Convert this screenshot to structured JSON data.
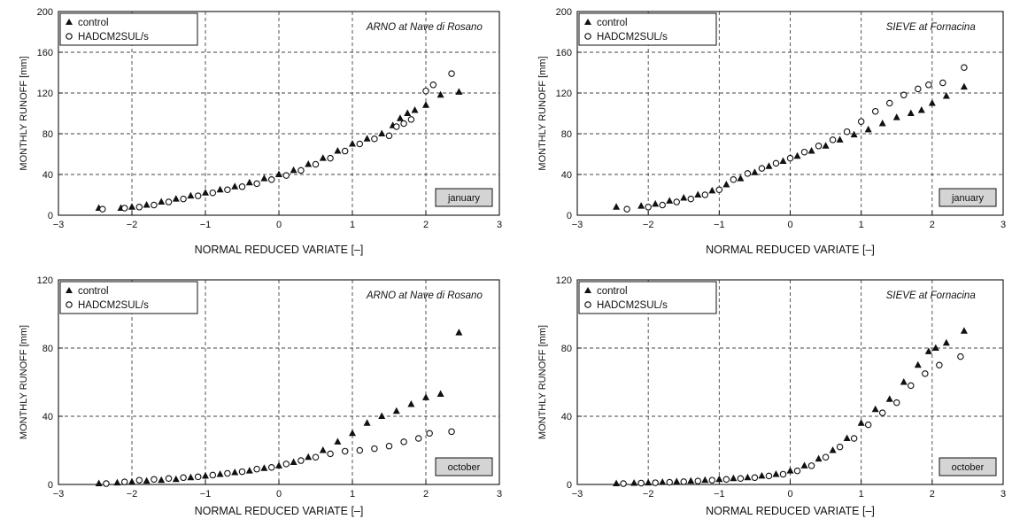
{
  "chart_data": [
    {
      "type": "scatter",
      "title": "ARNO at Nave di Rosano",
      "month": "january",
      "xlabel": "NORMAL REDUCED VARIATE [–]",
      "ylabel": "MONTHLY RUNOFF [mm]",
      "xlim": [
        -3,
        3
      ],
      "ylim": [
        0,
        200
      ],
      "xticks": [
        -3,
        -2,
        -1,
        0,
        1,
        2,
        3
      ],
      "yticks": [
        0,
        40,
        80,
        120,
        160,
        200
      ],
      "grid": true,
      "legend_position": "top-left",
      "series": [
        {
          "name": "control",
          "marker": "filled-triangle",
          "points": [
            [
              -2.45,
              7
            ],
            [
              -2.15,
              7
            ],
            [
              -2.0,
              8
            ],
            [
              -1.8,
              10
            ],
            [
              -1.6,
              13
            ],
            [
              -1.4,
              16
            ],
            [
              -1.2,
              19
            ],
            [
              -1.0,
              22
            ],
            [
              -0.8,
              25
            ],
            [
              -0.6,
              28
            ],
            [
              -0.4,
              32
            ],
            [
              -0.2,
              36
            ],
            [
              0.0,
              40
            ],
            [
              0.2,
              44
            ],
            [
              0.4,
              50
            ],
            [
              0.6,
              56
            ],
            [
              0.8,
              63
            ],
            [
              1.0,
              70
            ],
            [
              1.2,
              75
            ],
            [
              1.4,
              80
            ],
            [
              1.55,
              88
            ],
            [
              1.65,
              95
            ],
            [
              1.75,
              100
            ],
            [
              1.85,
              103
            ],
            [
              2.0,
              108
            ],
            [
              2.2,
              118
            ],
            [
              2.45,
              121
            ]
          ]
        },
        {
          "name": "HADCM2SUL/s",
          "marker": "open-circle",
          "points": [
            [
              -2.4,
              6
            ],
            [
              -2.1,
              7
            ],
            [
              -1.9,
              8
            ],
            [
              -1.7,
              10
            ],
            [
              -1.5,
              13
            ],
            [
              -1.3,
              16
            ],
            [
              -1.1,
              19
            ],
            [
              -0.9,
              22
            ],
            [
              -0.7,
              25
            ],
            [
              -0.5,
              28
            ],
            [
              -0.3,
              31
            ],
            [
              -0.1,
              35
            ],
            [
              0.1,
              39
            ],
            [
              0.3,
              44
            ],
            [
              0.5,
              50
            ],
            [
              0.7,
              56
            ],
            [
              0.9,
              63
            ],
            [
              1.1,
              70
            ],
            [
              1.3,
              75
            ],
            [
              1.5,
              78
            ],
            [
              1.6,
              87
            ],
            [
              1.7,
              90
            ],
            [
              1.8,
              94
            ],
            [
              2.0,
              122
            ],
            [
              2.1,
              128
            ],
            [
              2.35,
              139
            ]
          ]
        }
      ]
    },
    {
      "type": "scatter",
      "title": "SIEVE at Fornacina",
      "month": "january",
      "xlabel": "NORMAL REDUCED VARIATE [–]",
      "ylabel": "MONTHLY RUNOFF [mm]",
      "xlim": [
        -3,
        3
      ],
      "ylim": [
        0,
        200
      ],
      "xticks": [
        -3,
        -2,
        -1,
        0,
        1,
        2,
        3
      ],
      "yticks": [
        0,
        40,
        80,
        120,
        160,
        200
      ],
      "grid": true,
      "legend_position": "top-left",
      "series": [
        {
          "name": "control",
          "marker": "filled-triangle",
          "points": [
            [
              -2.45,
              8
            ],
            [
              -2.1,
              9
            ],
            [
              -1.9,
              11
            ],
            [
              -1.7,
              14
            ],
            [
              -1.5,
              17
            ],
            [
              -1.3,
              20
            ],
            [
              -1.1,
              24
            ],
            [
              -0.9,
              30
            ],
            [
              -0.7,
              36
            ],
            [
              -0.5,
              42
            ],
            [
              -0.3,
              48
            ],
            [
              -0.1,
              53
            ],
            [
              0.1,
              58
            ],
            [
              0.3,
              63
            ],
            [
              0.5,
              68
            ],
            [
              0.7,
              74
            ],
            [
              0.9,
              79
            ],
            [
              1.1,
              84
            ],
            [
              1.3,
              90
            ],
            [
              1.5,
              96
            ],
            [
              1.7,
              100
            ],
            [
              1.85,
              103
            ],
            [
              2.0,
              110
            ],
            [
              2.2,
              117
            ],
            [
              2.45,
              126
            ]
          ]
        },
        {
          "name": "HADCM2SUL/s",
          "marker": "open-circle",
          "points": [
            [
              -2.3,
              6
            ],
            [
              -2.0,
              8
            ],
            [
              -1.8,
              10
            ],
            [
              -1.6,
              13
            ],
            [
              -1.4,
              16
            ],
            [
              -1.2,
              20
            ],
            [
              -1.0,
              25
            ],
            [
              -0.8,
              35
            ],
            [
              -0.6,
              41
            ],
            [
              -0.4,
              46
            ],
            [
              -0.2,
              51
            ],
            [
              0.0,
              56
            ],
            [
              0.2,
              62
            ],
            [
              0.4,
              68
            ],
            [
              0.6,
              74
            ],
            [
              0.8,
              82
            ],
            [
              1.0,
              92
            ],
            [
              1.2,
              102
            ],
            [
              1.4,
              110
            ],
            [
              1.6,
              118
            ],
            [
              1.8,
              124
            ],
            [
              1.95,
              128
            ],
            [
              2.15,
              130
            ],
            [
              2.45,
              145
            ]
          ]
        }
      ]
    },
    {
      "type": "scatter",
      "title": "ARNO at Nave di Rosano",
      "month": "october",
      "xlabel": "NORMAL REDUCED VARIATE [–]",
      "ylabel": "MONTHLY RUNOFF [mm]",
      "xlim": [
        -3,
        3
      ],
      "ylim": [
        0,
        120
      ],
      "xticks": [
        -3,
        -2,
        -1,
        0,
        1,
        2,
        3
      ],
      "yticks": [
        0,
        40,
        80,
        120
      ],
      "grid": true,
      "legend_position": "top-left",
      "series": [
        {
          "name": "control",
          "marker": "filled-triangle",
          "points": [
            [
              -2.45,
              0.5
            ],
            [
              -2.2,
              1
            ],
            [
              -2.0,
              1.5
            ],
            [
              -1.8,
              2
            ],
            [
              -1.6,
              2.5
            ],
            [
              -1.4,
              3
            ],
            [
              -1.2,
              4
            ],
            [
              -1.0,
              5
            ],
            [
              -0.8,
              6
            ],
            [
              -0.6,
              7
            ],
            [
              -0.4,
              8
            ],
            [
              -0.2,
              9.5
            ],
            [
              0.0,
              11
            ],
            [
              0.2,
              13
            ],
            [
              0.4,
              16
            ],
            [
              0.6,
              20
            ],
            [
              0.8,
              25
            ],
            [
              1.0,
              30
            ],
            [
              1.2,
              36
            ],
            [
              1.4,
              40
            ],
            [
              1.6,
              43
            ],
            [
              1.8,
              47
            ],
            [
              2.0,
              51
            ],
            [
              2.2,
              53
            ],
            [
              2.45,
              89
            ]
          ]
        },
        {
          "name": "HADCM2SUL/s",
          "marker": "open-circle",
          "points": [
            [
              -2.35,
              0.5
            ],
            [
              -2.1,
              1.5
            ],
            [
              -1.9,
              2.5
            ],
            [
              -1.7,
              3
            ],
            [
              -1.5,
              3.5
            ],
            [
              -1.3,
              4
            ],
            [
              -1.1,
              4.5
            ],
            [
              -0.9,
              5.5
            ],
            [
              -0.7,
              6.5
            ],
            [
              -0.5,
              7.5
            ],
            [
              -0.3,
              9
            ],
            [
              -0.1,
              10
            ],
            [
              0.1,
              12
            ],
            [
              0.3,
              14
            ],
            [
              0.5,
              16
            ],
            [
              0.7,
              18
            ],
            [
              0.9,
              19.5
            ],
            [
              1.1,
              20
            ],
            [
              1.3,
              21
            ],
            [
              1.5,
              22.5
            ],
            [
              1.7,
              25
            ],
            [
              1.9,
              27
            ],
            [
              2.05,
              30
            ],
            [
              2.35,
              31
            ]
          ]
        }
      ]
    },
    {
      "type": "scatter",
      "title": "SIEVE at Fornacina",
      "month": "october",
      "xlabel": "NORMAL REDUCED VARIATE [–]",
      "ylabel": "MONTHLY RUNOFF [mm]",
      "xlim": [
        -3,
        3
      ],
      "ylim": [
        0,
        120
      ],
      "xticks": [
        -3,
        -2,
        -1,
        0,
        1,
        2,
        3
      ],
      "yticks": [
        0,
        40,
        80,
        120
      ],
      "grid": true,
      "legend_position": "top-left",
      "series": [
        {
          "name": "control",
          "marker": "filled-triangle",
          "points": [
            [
              -2.45,
              0.5
            ],
            [
              -2.2,
              0.8
            ],
            [
              -2.0,
              1
            ],
            [
              -1.8,
              1.3
            ],
            [
              -1.6,
              1.6
            ],
            [
              -1.4,
              2
            ],
            [
              -1.2,
              2.5
            ],
            [
              -1.0,
              3
            ],
            [
              -0.8,
              3.5
            ],
            [
              -0.6,
              4
            ],
            [
              -0.4,
              5
            ],
            [
              -0.2,
              6
            ],
            [
              0.0,
              8
            ],
            [
              0.2,
              11
            ],
            [
              0.4,
              15
            ],
            [
              0.6,
              20
            ],
            [
              0.8,
              27
            ],
            [
              1.0,
              36
            ],
            [
              1.2,
              44
            ],
            [
              1.4,
              50
            ],
            [
              1.6,
              60
            ],
            [
              1.8,
              70
            ],
            [
              1.95,
              78
            ],
            [
              2.05,
              80
            ],
            [
              2.2,
              83
            ],
            [
              2.45,
              90
            ]
          ]
        },
        {
          "name": "HADCM2SUL/s",
          "marker": "open-circle",
          "points": [
            [
              -2.35,
              0.5
            ],
            [
              -2.1,
              0.8
            ],
            [
              -1.9,
              1
            ],
            [
              -1.7,
              1.3
            ],
            [
              -1.5,
              1.6
            ],
            [
              -1.3,
              2
            ],
            [
              -1.1,
              2.5
            ],
            [
              -0.9,
              3
            ],
            [
              -0.7,
              3.5
            ],
            [
              -0.5,
              4
            ],
            [
              -0.3,
              5
            ],
            [
              -0.1,
              6
            ],
            [
              0.1,
              8
            ],
            [
              0.3,
              11
            ],
            [
              0.5,
              16
            ],
            [
              0.7,
              22
            ],
            [
              0.9,
              27
            ],
            [
              1.1,
              35
            ],
            [
              1.3,
              42
            ],
            [
              1.5,
              48
            ],
            [
              1.7,
              58
            ],
            [
              1.9,
              65
            ],
            [
              2.1,
              70
            ],
            [
              2.4,
              75
            ]
          ]
        }
      ]
    }
  ]
}
